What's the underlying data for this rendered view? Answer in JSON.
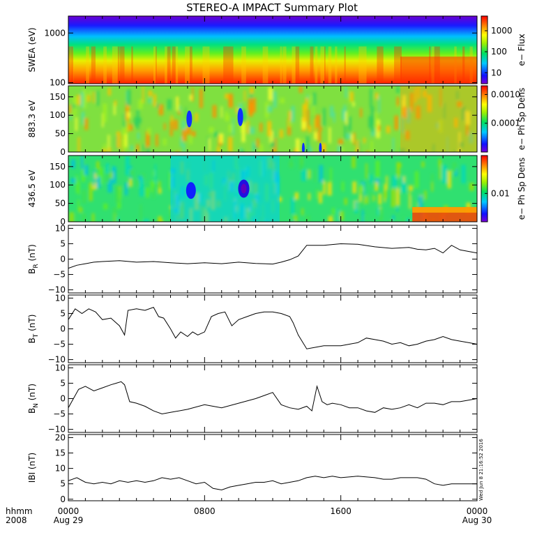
{
  "chart_data": {
    "title": "STEREO-A IMPACT Summary Plot",
    "time_axis": {
      "corner_labels": [
        "hhmm",
        "2008"
      ],
      "ticks": [
        {
          "hours": 0,
          "label": "0000",
          "sublabel": "Aug 29"
        },
        {
          "hours": 8,
          "label": "0800",
          "sublabel": ""
        },
        {
          "hours": 16,
          "label": "1600",
          "sublabel": ""
        },
        {
          "hours": 24,
          "label": "0000",
          "sublabel": "Aug 30"
        }
      ],
      "range_hours": [
        0,
        24
      ]
    },
    "stamp": "Wed Jun  8 21:16:52 2016",
    "panels": [
      {
        "type": "heatmap",
        "ylabel": "SWEA (eV)",
        "yscale": "log",
        "ylim": [
          95,
          2200
        ],
        "yticks": [
          {
            "value": 100,
            "label": "100"
          },
          {
            "value": 1000,
            "label": "1000"
          }
        ],
        "colorbar": {
          "label": "e− Flux",
          "scale": "log",
          "range": [
            3,
            5000
          ],
          "ticks": [
            {
              "value": 10,
              "label": "10"
            },
            {
              "value": 100,
              "label": "100"
            },
            {
              "value": 1000,
              "label": "1000"
            }
          ]
        },
        "description": "electron flux spectrogram"
      },
      {
        "type": "heatmap",
        "ylabel": "883.3 eV",
        "ylim": [
          0,
          180
        ],
        "yticks": [
          {
            "value": 0,
            "label": "0"
          },
          {
            "value": 50,
            "label": "50"
          },
          {
            "value": 100,
            "label": "100"
          },
          {
            "value": 150,
            "label": "150"
          }
        ],
        "colorbar": {
          "label": "e− Ph Sp Dens",
          "scale": "log",
          "range": [
            1e-05,
            0.002
          ],
          "ticks": [
            {
              "value": 0.0001,
              "label": "0.0001"
            },
            {
              "value": 0.001,
              "label": "0.0010"
            }
          ]
        }
      },
      {
        "type": "heatmap",
        "ylabel": "436.5 eV",
        "ylim": [
          0,
          180
        ],
        "yticks": [
          {
            "value": 0,
            "label": "0"
          },
          {
            "value": 50,
            "label": "50"
          },
          {
            "value": 100,
            "label": "100"
          },
          {
            "value": 150,
            "label": "150"
          }
        ],
        "colorbar": {
          "label": "e− Ph Sp Dens",
          "scale": "log",
          "range": [
            0.003,
            0.05
          ],
          "ticks": [
            {
              "value": 0.01,
              "label": "0.01"
            }
          ]
        }
      },
      {
        "type": "line",
        "ylabel_main": "B",
        "ylabel_sub": "R",
        "ylabel_unit": "(nT)",
        "ylim": [
          -11,
          11
        ],
        "yticks": [
          {
            "value": -10,
            "label": "−10"
          },
          {
            "value": -5,
            "label": "−5"
          },
          {
            "value": 0,
            "label": "0"
          },
          {
            "value": 5,
            "label": "5"
          },
          {
            "value": 10,
            "label": "10"
          }
        ],
        "x": [
          0,
          0.5,
          1,
          1.5,
          2,
          3,
          4,
          5,
          6,
          7,
          8,
          9,
          10,
          11,
          12,
          12.5,
          13,
          13.5,
          14,
          15,
          16,
          17,
          18,
          19,
          20,
          20.5,
          21,
          21.5,
          22,
          22.5,
          23,
          24
        ],
        "y": [
          -3,
          -2,
          -1.5,
          -1,
          -0.8,
          -0.5,
          -1,
          -0.8,
          -1.2,
          -1.5,
          -1.2,
          -1.5,
          -1,
          -1.4,
          -1.6,
          -1,
          -0.2,
          1,
          4.5,
          4.5,
          5,
          4.8,
          4,
          3.5,
          3.8,
          3.2,
          3,
          3.5,
          2,
          4.5,
          3,
          2
        ]
      },
      {
        "type": "line",
        "ylabel_main": "B",
        "ylabel_sub": "T",
        "ylabel_unit": "(nT)",
        "ylim": [
          -11,
          11
        ],
        "yticks": [
          {
            "value": -10,
            "label": "−10"
          },
          {
            "value": -5,
            "label": "−5"
          },
          {
            "value": 0,
            "label": "0"
          },
          {
            "value": 5,
            "label": "5"
          },
          {
            "value": 10,
            "label": "10"
          }
        ],
        "x": [
          0,
          0.4,
          0.8,
          1.2,
          1.6,
          2,
          2.5,
          3,
          3.3,
          3.5,
          4,
          4.5,
          5,
          5.3,
          5.6,
          6,
          6.3,
          6.6,
          7,
          7.3,
          7.6,
          8,
          8.4,
          8.8,
          9.2,
          9.6,
          10,
          10.5,
          11,
          11.5,
          12,
          12.5,
          13,
          13.2,
          13.5,
          14,
          14.5,
          15,
          16,
          16.5,
          17,
          17.5,
          18,
          18.5,
          19,
          19.5,
          20,
          20.5,
          21,
          21.5,
          22,
          22.5,
          23,
          23.5,
          24
        ],
        "y": [
          3,
          6.5,
          5,
          6.5,
          5.5,
          3,
          3.5,
          1,
          -2,
          6,
          6.5,
          6,
          7,
          4,
          3.5,
          0,
          -3,
          -1,
          -2.5,
          -1,
          -2,
          -1,
          4,
          5,
          5.5,
          1,
          3,
          4,
          5,
          5.5,
          5.5,
          5,
          4,
          2,
          -2,
          -6.5,
          -6,
          -5.5,
          -5.5,
          -5,
          -4.5,
          -3,
          -3.5,
          -4,
          -5,
          -4.5,
          -5.5,
          -5,
          -4,
          -3.5,
          -2.5,
          -3.5,
          -4,
          -4.5,
          -5
        ]
      },
      {
        "type": "line",
        "ylabel_main": "B",
        "ylabel_sub": "N",
        "ylabel_unit": "(nT)",
        "ylim": [
          -11,
          11
        ],
        "yticks": [
          {
            "value": -10,
            "label": "−10"
          },
          {
            "value": -5,
            "label": "−5"
          },
          {
            "value": 0,
            "label": "0"
          },
          {
            "value": 5,
            "label": "5"
          },
          {
            "value": 10,
            "label": "10"
          }
        ],
        "x": [
          0,
          0.3,
          0.6,
          1,
          1.5,
          2,
          2.5,
          2.8,
          3.1,
          3.3,
          3.6,
          4,
          4.5,
          5,
          5.5,
          6,
          7,
          8,
          8.5,
          9,
          10,
          11,
          11.5,
          12,
          12.5,
          13,
          13.5,
          14,
          14.3,
          14.6,
          14.9,
          15.2,
          15.5,
          16,
          16.5,
          17,
          17.5,
          18,
          18.5,
          19,
          19.5,
          20,
          20.5,
          21,
          21.5,
          22,
          22.5,
          23,
          23.5,
          24
        ],
        "y": [
          -3,
          0,
          3,
          4,
          2.5,
          3.5,
          4.5,
          5,
          5.5,
          4.5,
          -1,
          -1.5,
          -2.5,
          -4,
          -5,
          -4.5,
          -3.5,
          -2,
          -2.5,
          -3,
          -1.5,
          0,
          1,
          2,
          -2,
          -3,
          -3.5,
          -2.5,
          -4,
          4,
          -1,
          -2,
          -1.5,
          -2,
          -3,
          -3,
          -4,
          -4.5,
          -3,
          -3.5,
          -3,
          -2,
          -3,
          -1.5,
          -1.5,
          -2,
          -1,
          -1,
          -0.5,
          0
        ]
      },
      {
        "type": "line",
        "ylabel_main": "IBI",
        "ylabel_sub": "",
        "ylabel_unit": "(nT)",
        "ylim": [
          -0.5,
          21
        ],
        "yticks": [
          {
            "value": 0,
            "label": "0"
          },
          {
            "value": 5,
            "label": "5"
          },
          {
            "value": 10,
            "label": "10"
          },
          {
            "value": 15,
            "label": "15"
          },
          {
            "value": 20,
            "label": "20"
          }
        ],
        "x": [
          0,
          0.5,
          1,
          1.5,
          2,
          2.5,
          3,
          3.5,
          4,
          4.5,
          5,
          5.5,
          6,
          6.5,
          7,
          7.5,
          8,
          8.5,
          9,
          9.5,
          10,
          10.5,
          11,
          11.5,
          12,
          12.5,
          13,
          13.5,
          14,
          14.5,
          15,
          15.5,
          16,
          17,
          18,
          18.5,
          19,
          19.5,
          20,
          20.5,
          21,
          21.5,
          22,
          22.5,
          23,
          23.5,
          24
        ],
        "y": [
          6,
          7,
          5.5,
          5,
          5.5,
          5,
          6,
          5.5,
          6,
          5.5,
          6,
          7,
          6.5,
          7,
          6,
          5,
          5.5,
          3.5,
          3,
          4,
          4.5,
          5,
          5.5,
          5.5,
          6,
          5,
          5.5,
          6,
          7,
          7.5,
          7,
          7.5,
          7,
          7.5,
          7,
          6.5,
          6.5,
          7,
          7,
          7,
          6.5,
          5,
          4.5,
          5,
          5,
          5,
          5
        ]
      }
    ]
  }
}
